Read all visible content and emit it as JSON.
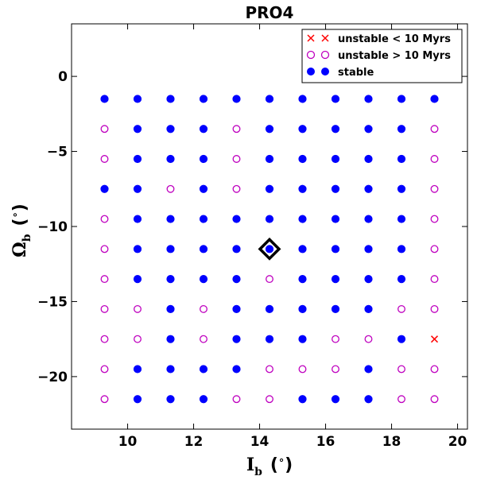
{
  "chart_data": {
    "type": "scatter",
    "title": "PRO4",
    "xlabel": {
      "main": "I",
      "sub": "b",
      "unit_open": "(",
      "unit_deg": "∘",
      "unit_close": ")"
    },
    "ylabel": {
      "main": "Ω",
      "sub": "b",
      "unit_open": "(",
      "unit_deg": "∘",
      "unit_close": ")"
    },
    "xlim": [
      8.3,
      20.3
    ],
    "ylim": [
      -23.5,
      3.5
    ],
    "xticks": [
      10,
      12,
      14,
      16,
      18,
      20
    ],
    "yticks": [
      0,
      -5,
      -10,
      -15,
      -20
    ],
    "xtick_labels": [
      "10",
      "12",
      "14",
      "16",
      "18",
      "20"
    ],
    "ytick_labels": [
      "0",
      "−5",
      "−10",
      "−15",
      "−20"
    ],
    "grid": false,
    "legend_position": "top-right",
    "colors": {
      "stable": "#0000ff",
      "unstable_late": "#bf00bf",
      "unstable_early": "#ff0000",
      "marker": "#000000"
    },
    "x_values": [
      9.3,
      10.3,
      11.3,
      12.3,
      13.3,
      14.3,
      15.3,
      16.3,
      17.3,
      18.3,
      19.3
    ],
    "y_values": [
      -1.5,
      -3.5,
      -5.5,
      -7.5,
      -9.5,
      -11.5,
      -13.5,
      -15.5,
      -17.5,
      -19.5,
      -21.5
    ],
    "grid_codes": [
      "SSSSSSSSSSS",
      "USSSUSSSSSU",
      "USSSUSSSSSU",
      "SSUSUSSSSSU",
      "USSSSSSSSSU",
      "USSSSSSSSSU",
      "USSSSUSSSSU",
      "UUSUSSSSSUU",
      "UUSUSSSUUSX",
      "USSSSUUUSUU",
      "USSSUUSSSUU"
    ],
    "code_legend": {
      "S": "stable",
      "U": "unstable > 10 Myrs",
      "X": "unstable < 10 Myrs"
    },
    "highlight": {
      "x": 14.3,
      "y": -11.5
    },
    "legend": [
      {
        "label": "unstable < 10 Myrs",
        "marker": "x",
        "color": "#ff0000"
      },
      {
        "label": "unstable > 10 Myrs",
        "marker": "open-circle",
        "color": "#bf00bf"
      },
      {
        "label": "stable",
        "marker": "filled-circle",
        "color": "#0000ff"
      }
    ]
  }
}
